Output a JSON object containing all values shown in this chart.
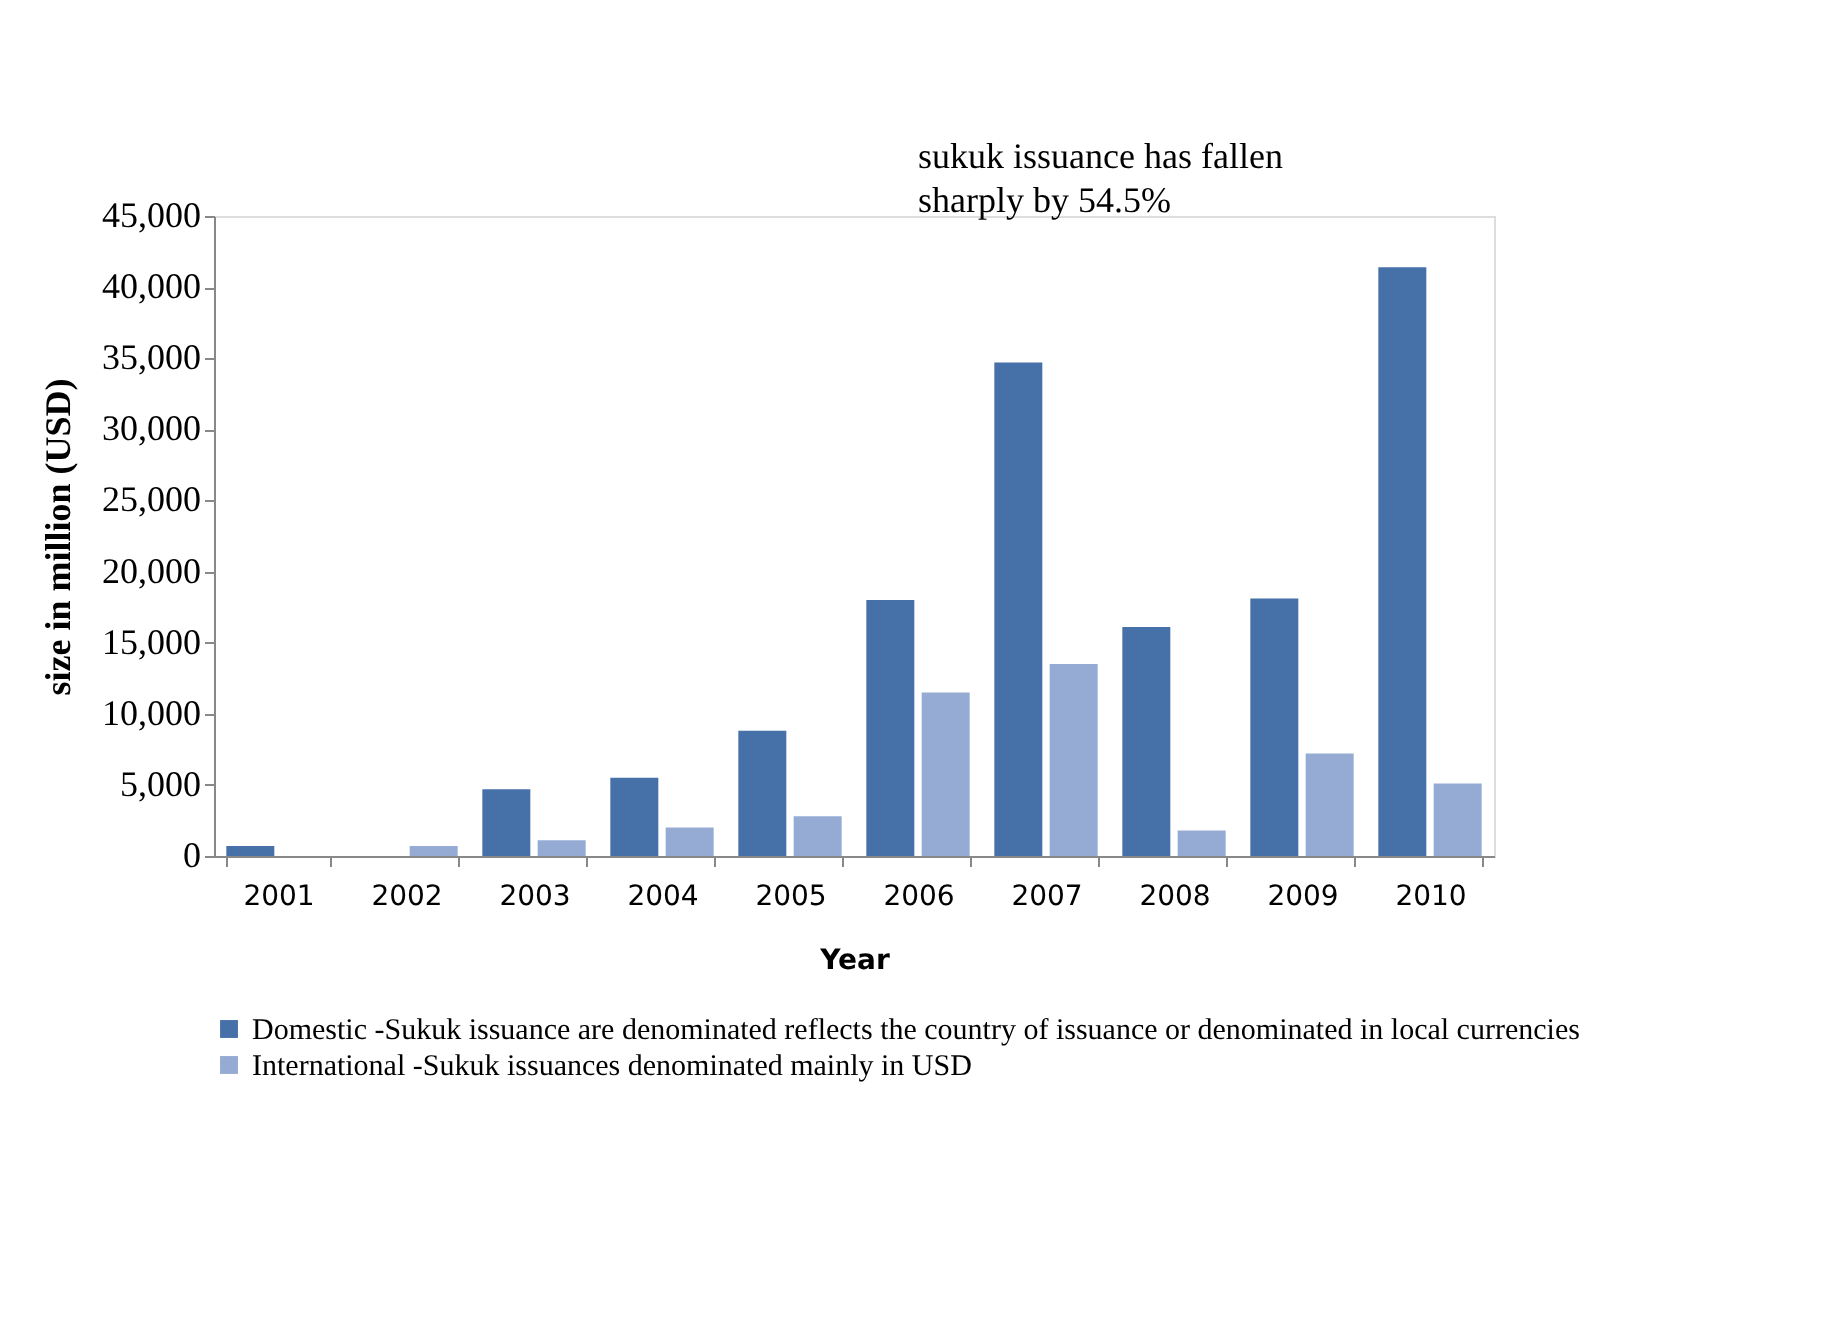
{
  "chart_data": {
    "type": "bar",
    "xlabel": "Year",
    "ylabel": "size in million (USD)",
    "categories": [
      "2001",
      "2002",
      "2003",
      "2004",
      "2005",
      "2006",
      "2007",
      "2008",
      "2009",
      "2010"
    ],
    "series": [
      {
        "name": "Domestic -Sukuk issuance are denominated reflects the country of issuance or denominated in local currencies",
        "color": "#4571a8",
        "values": [
          700,
          0,
          4700,
          5500,
          8800,
          18000,
          34700,
          16100,
          18100,
          41400
        ]
      },
      {
        "name": "International -Sukuk issuances denominated mainly in USD",
        "color": "#95abd3",
        "values": [
          0,
          700,
          1100,
          2000,
          2800,
          11500,
          13500,
          1800,
          7200,
          5100
        ]
      }
    ],
    "ylim": [
      0,
      45000
    ],
    "yticks": [
      {
        "value": 0,
        "label": "0"
      },
      {
        "value": 5000,
        "label": "5,000"
      },
      {
        "value": 10000,
        "label": "10,000"
      },
      {
        "value": 15000,
        "label": "15,000"
      },
      {
        "value": 20000,
        "label": "20,000"
      },
      {
        "value": 25000,
        "label": "25,000"
      },
      {
        "value": 30000,
        "label": "30,000"
      },
      {
        "value": 35000,
        "label": "35,000"
      },
      {
        "value": 40000,
        "label": "40,000"
      },
      {
        "value": 45000,
        "label": "45,000"
      }
    ],
    "annotations": [
      "sukuk issuance has fallen sharply by 54.5%"
    ],
    "grid": false,
    "legend": "bottom"
  }
}
